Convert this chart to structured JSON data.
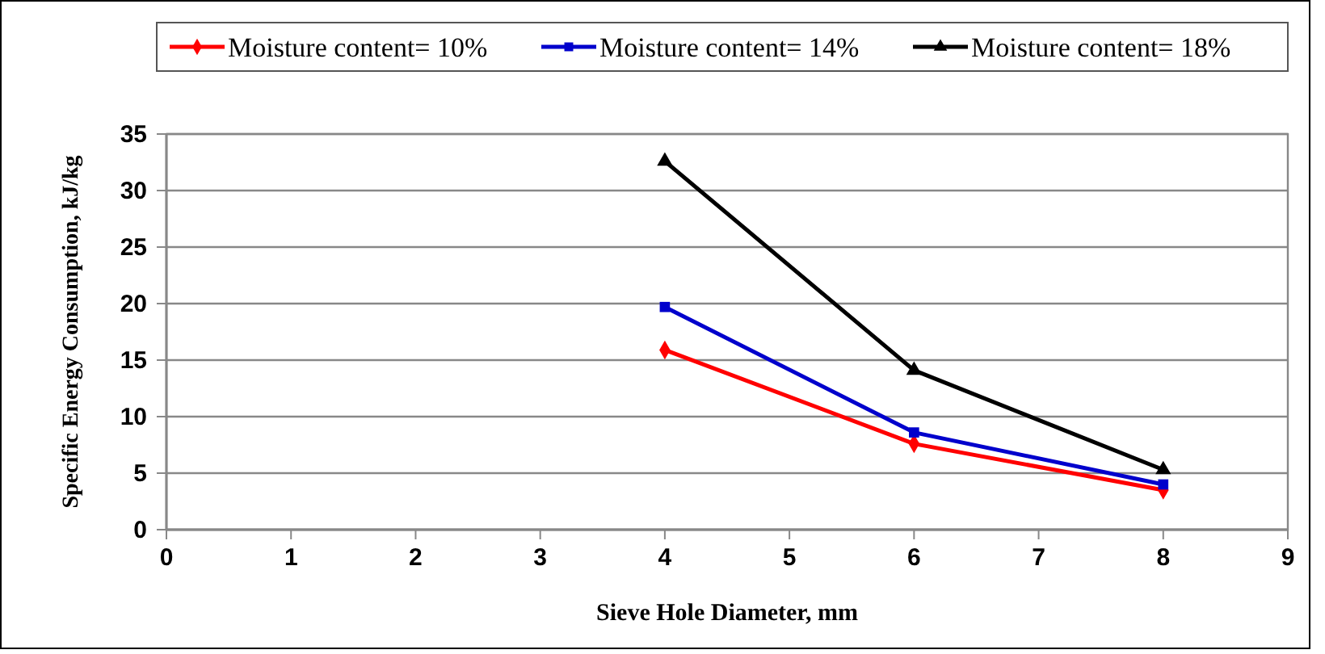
{
  "chart_data": {
    "type": "line",
    "xlabel": "Sieve Hole Diameter, mm",
    "ylabel": "Specific Energy Consumption, kJ/kg",
    "xlim": [
      0,
      9
    ],
    "xticks": [
      0,
      1,
      2,
      3,
      4,
      5,
      6,
      7,
      8,
      9
    ],
    "ylim": [
      0,
      35
    ],
    "yticks": [
      0,
      5,
      10,
      15,
      20,
      25,
      30,
      35
    ],
    "grid": "y",
    "legend": "top",
    "line_style": "solid",
    "x": [
      4,
      6,
      8
    ],
    "series": [
      {
        "name": "Moisture content= 10%",
        "color": "#ff0000",
        "marker": "diamond",
        "values": [
          15.9,
          7.6,
          3.5
        ]
      },
      {
        "name": "Moisture content= 14%",
        "color": "#0000cc",
        "marker": "square",
        "values": [
          19.7,
          8.6,
          4.0
        ]
      },
      {
        "name": "Moisture content= 18%",
        "color": "#000000",
        "marker": "triangle",
        "values": [
          32.6,
          14.1,
          5.3
        ]
      }
    ]
  }
}
